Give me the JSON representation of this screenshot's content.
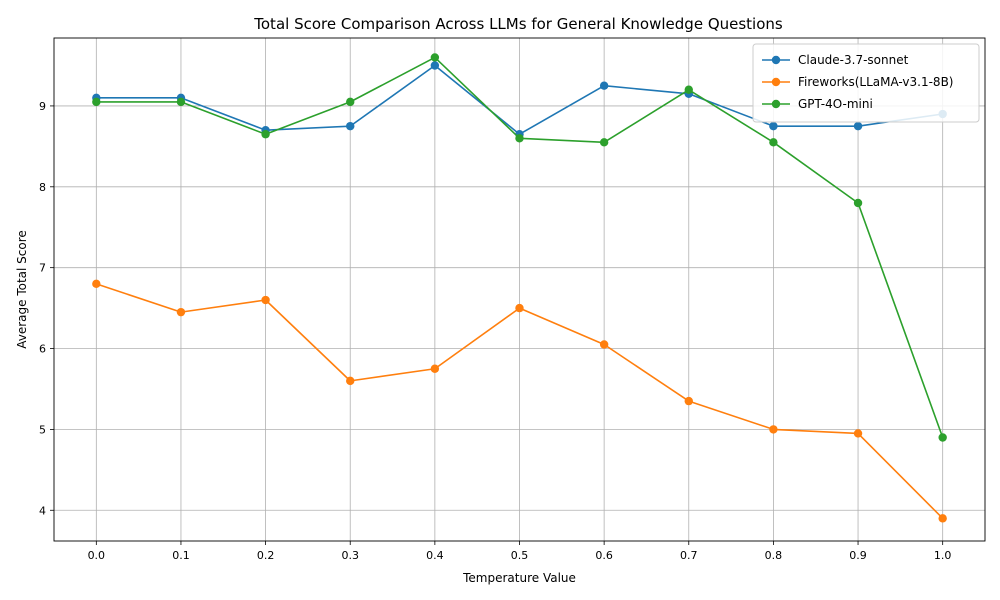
{
  "chart_data": {
    "type": "line",
    "title": "Total Score Comparison Across LLMs for General Knowledge Questions",
    "xlabel": "Temperature Value",
    "ylabel": "Average Total Score",
    "x": [
      0.0,
      0.1,
      0.2,
      0.3,
      0.4,
      0.5,
      0.6,
      0.7,
      0.8,
      0.9,
      1.0
    ],
    "x_tick_labels": [
      "0.0",
      "0.1",
      "0.2",
      "0.3",
      "0.4",
      "0.5",
      "0.6",
      "0.7",
      "0.8",
      "0.9",
      "1.0"
    ],
    "xlim": [
      -0.05,
      1.05
    ],
    "ylim": [
      3.62,
      9.84
    ],
    "y_ticks": [
      4,
      5,
      6,
      7,
      8,
      9
    ],
    "y_tick_labels": [
      "4",
      "5",
      "6",
      "7",
      "8",
      "9"
    ],
    "grid": true,
    "legend_position": "top-right",
    "series": [
      {
        "name": "Claude-3.7-sonnet",
        "color": "#1f77b4",
        "values": [
          9.1,
          9.1,
          8.7,
          8.75,
          9.5,
          8.65,
          9.25,
          9.15,
          8.75,
          8.75,
          8.9
        ]
      },
      {
        "name": "Fireworks(LLaMA-v3.1-8B)",
        "color": "#ff7f0e",
        "values": [
          6.8,
          6.45,
          6.6,
          5.6,
          5.75,
          6.5,
          6.05,
          5.35,
          5.0,
          4.95,
          3.9
        ]
      },
      {
        "name": "GPT-4O-mini",
        "color": "#2ca02c",
        "values": [
          9.05,
          9.05,
          8.65,
          9.05,
          9.6,
          8.6,
          8.55,
          9.2,
          8.55,
          7.8,
          4.9
        ]
      }
    ]
  }
}
